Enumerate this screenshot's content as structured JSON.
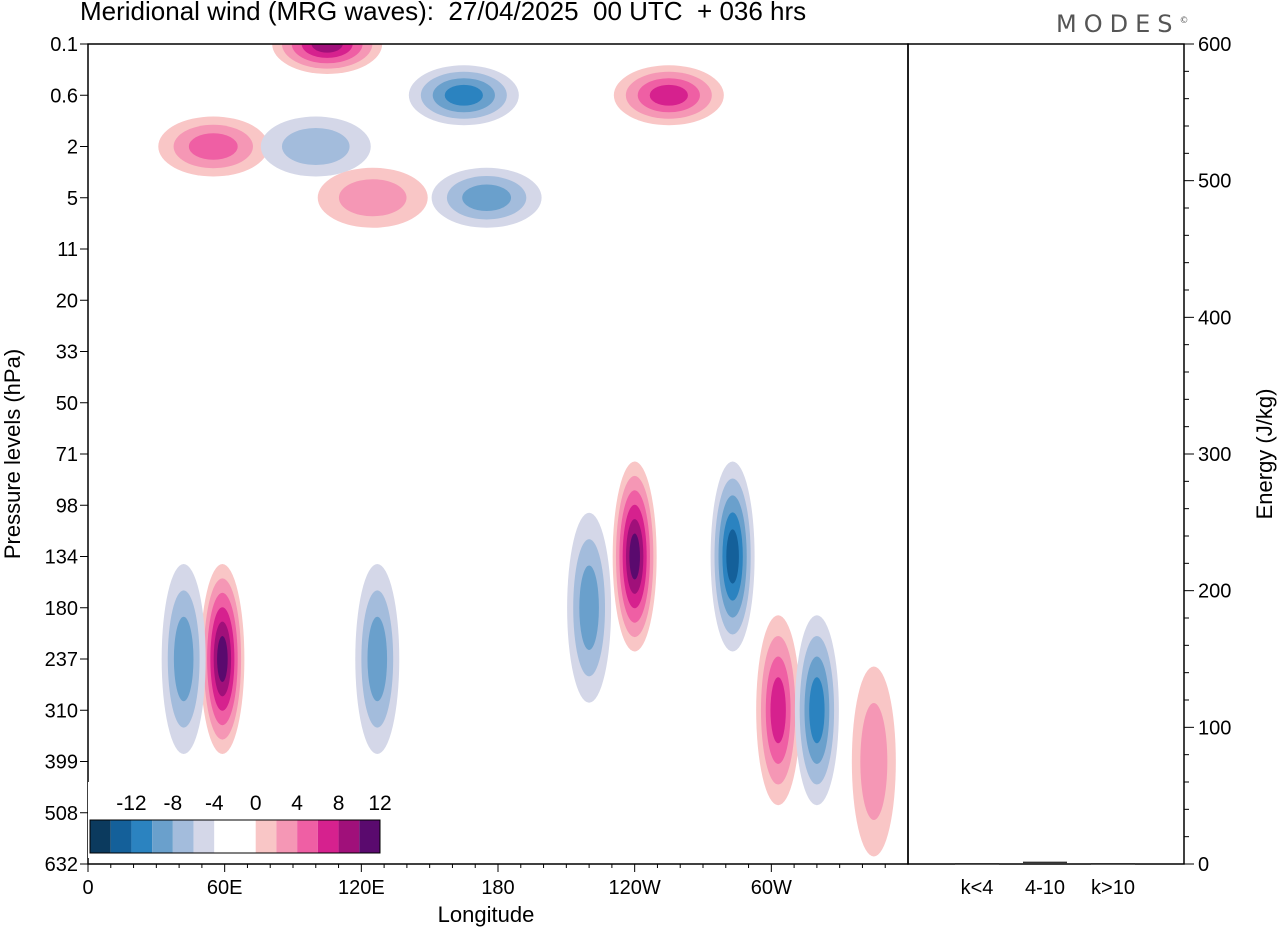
{
  "title": "Meridional wind (MRG waves):  27/04/2025  00 UTC  + 036 hrs",
  "logo": "MODES",
  "chart_data": [
    {
      "type": "heatmap",
      "name": "meridional-wind-contours",
      "xlabel": "Longitude",
      "ylabel": "Pressure levels (hPa)",
      "x_ticks": [
        "0",
        "60E",
        "120E",
        "180",
        "120W",
        "60W"
      ],
      "x_tick_degrees": [
        0,
        60,
        120,
        180,
        240,
        300
      ],
      "xlim": [
        0,
        360
      ],
      "y_ticks": [
        "0.1",
        "0.6",
        "2",
        "5",
        "11",
        "20",
        "33",
        "50",
        "71",
        "98",
        "134",
        "180",
        "237",
        "310",
        "399",
        "508",
        "632"
      ],
      "colorbar": {
        "labels": [
          "-12",
          "-8",
          "-4",
          "0",
          "4",
          "8",
          "12"
        ],
        "colors": [
          "#0b3a5e",
          "#14609a",
          "#2b83c0",
          "#6aa0cc",
          "#a3bcdc",
          "#d4d7e8",
          "#ffffff",
          "#ffffff",
          "#f9c6c6",
          "#f597b5",
          "#ef5fa4",
          "#d6218e",
          "#a0107a",
          "#5a0a6e"
        ]
      },
      "features": [
        {
          "sign": "positive",
          "lon": 105,
          "level": "0.1",
          "peak": 10
        },
        {
          "sign": "negative",
          "lon": 165,
          "level": "0.6",
          "peak": -8
        },
        {
          "sign": "positive",
          "lon": 255,
          "level": "0.6",
          "peak": 8
        },
        {
          "sign": "positive",
          "lon": 55,
          "level": "2",
          "peak": 6
        },
        {
          "sign": "negative",
          "lon": 100,
          "level": "2",
          "peak": -4
        },
        {
          "sign": "negative",
          "lon": 175,
          "level": "5",
          "peak": -6
        },
        {
          "sign": "positive",
          "lon": 125,
          "level": "5",
          "peak": 4
        },
        {
          "sign": "positive",
          "lon": 240,
          "level": "134",
          "peak": 12
        },
        {
          "sign": "negative",
          "lon": 283,
          "level": "134",
          "peak": -10
        },
        {
          "sign": "positive",
          "lon": 59,
          "level": "237",
          "peak": 12
        },
        {
          "sign": "negative",
          "lon": 42,
          "level": "237",
          "peak": -6
        },
        {
          "sign": "negative",
          "lon": 127,
          "level": "237",
          "peak": -5
        },
        {
          "sign": "negative",
          "lon": 220,
          "level": "180",
          "peak": -6
        },
        {
          "sign": "positive",
          "lon": 303,
          "level": "310",
          "peak": 8
        },
        {
          "sign": "negative",
          "lon": 320,
          "level": "310",
          "peak": -8
        },
        {
          "sign": "positive",
          "lon": 345,
          "level": "399",
          "peak": 4
        }
      ]
    },
    {
      "type": "bar",
      "name": "energy-by-wavenumber",
      "categories": [
        "k<4",
        "4-10",
        "k>10"
      ],
      "values": [
        0,
        1,
        0
      ],
      "ylabel": "Energy (J/kg)",
      "ylim": [
        0,
        600
      ],
      "y_ticks": [
        "0",
        "100",
        "200",
        "300",
        "400",
        "500",
        "600"
      ]
    }
  ]
}
